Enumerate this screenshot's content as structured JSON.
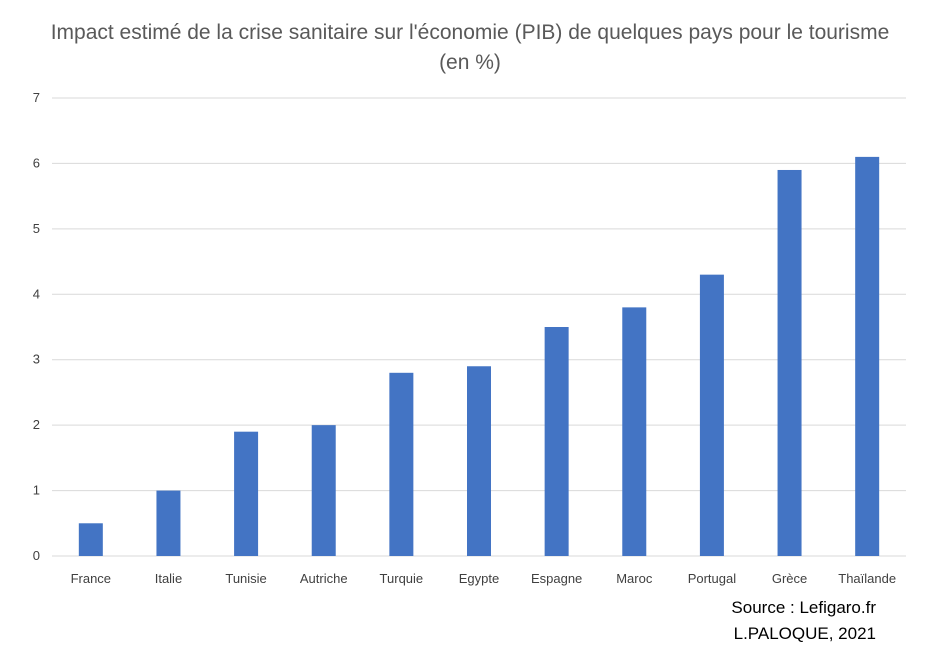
{
  "chart_data": {
    "type": "bar",
    "title": "Impact estimé de la crise sanitaire sur l'économie (PIB) de quelques pays pour le tourisme (en %)",
    "categories": [
      "France",
      "Italie",
      "Tunisie",
      "Autriche",
      "Turquie",
      "Egypte",
      "Espagne",
      "Maroc",
      "Portugal",
      "Grèce",
      "Thaïlande"
    ],
    "values": [
      0.5,
      1,
      1.9,
      2,
      2.8,
      2.9,
      3.5,
      3.8,
      4.3,
      5.9,
      6.1
    ],
    "ylim": [
      0,
      7
    ],
    "yticks": [
      0,
      1,
      2,
      3,
      4,
      5,
      6,
      7
    ],
    "grid": true,
    "bar_color": "#4374c4",
    "grid_color": "#d9d9d9"
  },
  "source": {
    "line1": "Source : Lefigaro.fr",
    "line2": "L.PALOQUE, 2021"
  }
}
